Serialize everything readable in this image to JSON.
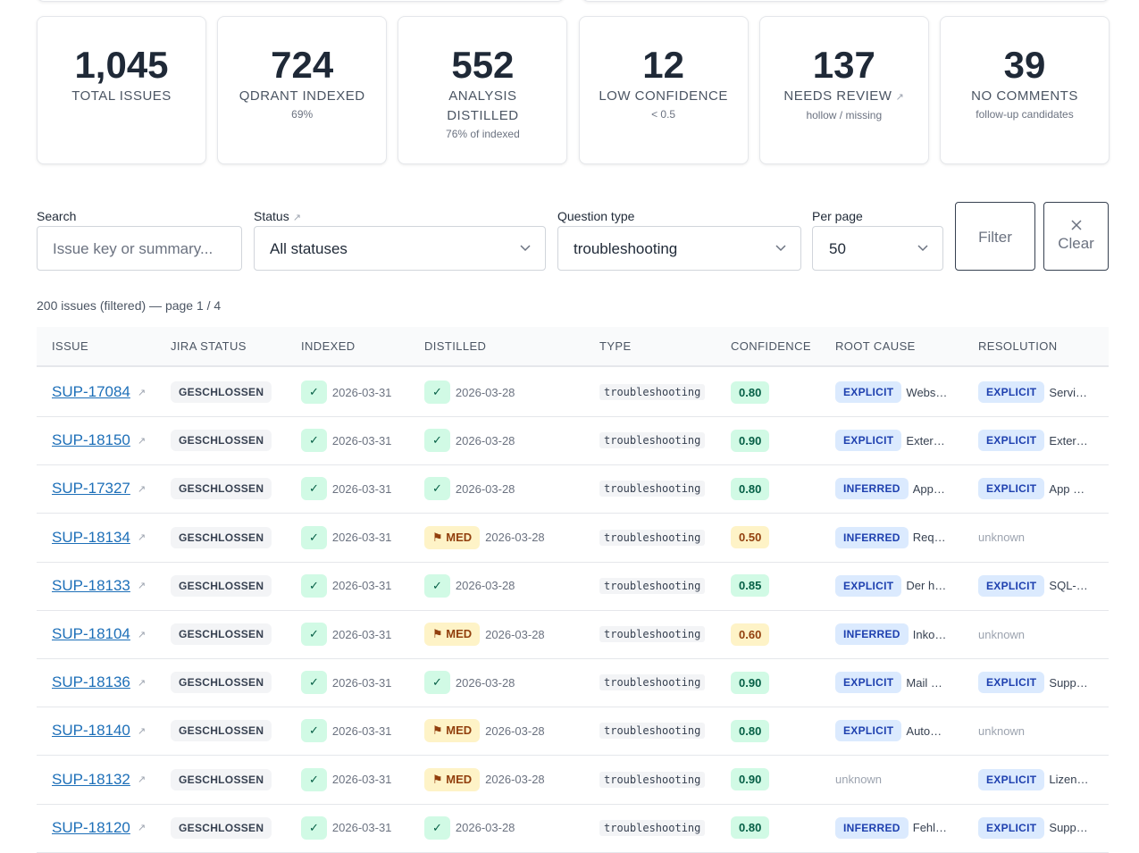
{
  "stats": [
    {
      "value": "1,045",
      "label": "TOTAL ISSUES"
    },
    {
      "value": "724",
      "label": "QDRANT INDEXED",
      "sub": "69%"
    },
    {
      "value": "552",
      "label": "ANALYSIS DISTILLED",
      "sub": "76% of indexed"
    },
    {
      "value": "12",
      "label": "LOW CONFIDENCE",
      "sub": "< 0.5"
    },
    {
      "value": "137",
      "label": "NEEDS REVIEW",
      "sub": "hollow / missing"
    },
    {
      "value": "39",
      "label": "NO COMMENTS",
      "sub": "follow-up candidates"
    }
  ],
  "filters": {
    "search": {
      "label": "Search",
      "placeholder": "Issue key or summary..."
    },
    "status": {
      "label": "Status",
      "value": "All statuses"
    },
    "question_type": {
      "label": "Question type",
      "value": "troubleshooting"
    },
    "per_page": {
      "label": "Per page",
      "value": "50"
    },
    "filter_button": "Filter",
    "clear_button": "Clear"
  },
  "summary": "200 issues (filtered) — page 1 / 4",
  "table": {
    "headers": [
      "ISSUE",
      "JIRA STATUS",
      "INDEXED",
      "DISTILLED",
      "TYPE",
      "CONFIDENCE",
      "ROOT CAUSE",
      "RESOLUTION"
    ],
    "rows": [
      {
        "key": "SUP-17084",
        "status": "GESCHLOSSEN",
        "indexed": {
          "badge": "✓",
          "date": "2026-03-31"
        },
        "distilled": {
          "badge": "✓",
          "tone": "green",
          "date": "2026-03-28"
        },
        "type": "troubleshooting",
        "confidence": {
          "text": "0.80",
          "tone": "green"
        },
        "root": {
          "tag": "EXPLICIT",
          "text": "Webs…"
        },
        "resolution": {
          "tag": "EXPLICIT",
          "text": "Servi…"
        }
      },
      {
        "key": "SUP-18150",
        "status": "GESCHLOSSEN",
        "indexed": {
          "badge": "✓",
          "date": "2026-03-31"
        },
        "distilled": {
          "badge": "✓",
          "tone": "green",
          "date": "2026-03-28"
        },
        "type": "troubleshooting",
        "confidence": {
          "text": "0.90",
          "tone": "green"
        },
        "root": {
          "tag": "EXPLICIT",
          "text": "Exter…"
        },
        "resolution": {
          "tag": "EXPLICIT",
          "text": "Exter…"
        }
      },
      {
        "key": "SUP-17327",
        "status": "GESCHLOSSEN",
        "indexed": {
          "badge": "✓",
          "date": "2026-03-31"
        },
        "distilled": {
          "badge": "✓",
          "tone": "green",
          "date": "2026-03-28"
        },
        "type": "troubleshooting",
        "confidence": {
          "text": "0.80",
          "tone": "green"
        },
        "root": {
          "tag": "INFERRED",
          "text": "App…"
        },
        "resolution": {
          "tag": "EXPLICIT",
          "text": "App …"
        }
      },
      {
        "key": "SUP-18134",
        "status": "GESCHLOSSEN",
        "indexed": {
          "badge": "✓",
          "date": "2026-03-31"
        },
        "distilled": {
          "badge": "⚑ MED",
          "tone": "yellow",
          "date": "2026-03-28"
        },
        "type": "troubleshooting",
        "confidence": {
          "text": "0.50",
          "tone": "yellow"
        },
        "root": {
          "tag": "INFERRED",
          "text": "Req…"
        },
        "resolution": {
          "text": "unknown"
        }
      },
      {
        "key": "SUP-18133",
        "status": "GESCHLOSSEN",
        "indexed": {
          "badge": "✓",
          "date": "2026-03-31"
        },
        "distilled": {
          "badge": "✓",
          "tone": "green",
          "date": "2026-03-28"
        },
        "type": "troubleshooting",
        "confidence": {
          "text": "0.85",
          "tone": "green"
        },
        "root": {
          "tag": "EXPLICIT",
          "text": "Der h…"
        },
        "resolution": {
          "tag": "EXPLICIT",
          "text": "SQL-…"
        }
      },
      {
        "key": "SUP-18104",
        "status": "GESCHLOSSEN",
        "indexed": {
          "badge": "✓",
          "date": "2026-03-31"
        },
        "distilled": {
          "badge": "⚑ MED",
          "tone": "yellow",
          "date": "2026-03-28"
        },
        "type": "troubleshooting",
        "confidence": {
          "text": "0.60",
          "tone": "yellow"
        },
        "root": {
          "tag": "INFERRED",
          "text": "Inko…"
        },
        "resolution": {
          "text": "unknown"
        }
      },
      {
        "key": "SUP-18136",
        "status": "GESCHLOSSEN",
        "indexed": {
          "badge": "✓",
          "date": "2026-03-31"
        },
        "distilled": {
          "badge": "✓",
          "tone": "green",
          "date": "2026-03-28"
        },
        "type": "troubleshooting",
        "confidence": {
          "text": "0.90",
          "tone": "green"
        },
        "root": {
          "tag": "EXPLICIT",
          "text": "Mail …"
        },
        "resolution": {
          "tag": "EXPLICIT",
          "text": "Supp…"
        }
      },
      {
        "key": "SUP-18140",
        "status": "GESCHLOSSEN",
        "indexed": {
          "badge": "✓",
          "date": "2026-03-31"
        },
        "distilled": {
          "badge": "⚑ MED",
          "tone": "yellow",
          "date": "2026-03-28"
        },
        "type": "troubleshooting",
        "confidence": {
          "text": "0.80",
          "tone": "green"
        },
        "root": {
          "tag": "EXPLICIT",
          "text": "Auto…"
        },
        "resolution": {
          "text": "unknown"
        }
      },
      {
        "key": "SUP-18132",
        "status": "GESCHLOSSEN",
        "indexed": {
          "badge": "✓",
          "date": "2026-03-31"
        },
        "distilled": {
          "badge": "⚑ MED",
          "tone": "yellow",
          "date": "2026-03-28"
        },
        "type": "troubleshooting",
        "confidence": {
          "text": "0.90",
          "tone": "green"
        },
        "root": {
          "text": "unknown"
        },
        "resolution": {
          "tag": "EXPLICIT",
          "text": "Lizen…"
        }
      },
      {
        "key": "SUP-18120",
        "status": "GESCHLOSSEN",
        "indexed": {
          "badge": "✓",
          "date": "2026-03-31"
        },
        "distilled": {
          "badge": "✓",
          "tone": "green",
          "date": "2026-03-28"
        },
        "type": "troubleshooting",
        "confidence": {
          "text": "0.80",
          "tone": "green"
        },
        "root": {
          "tag": "INFERRED",
          "text": "Fehl…"
        },
        "resolution": {
          "tag": "EXPLICIT",
          "text": "Supp…"
        }
      }
    ]
  }
}
